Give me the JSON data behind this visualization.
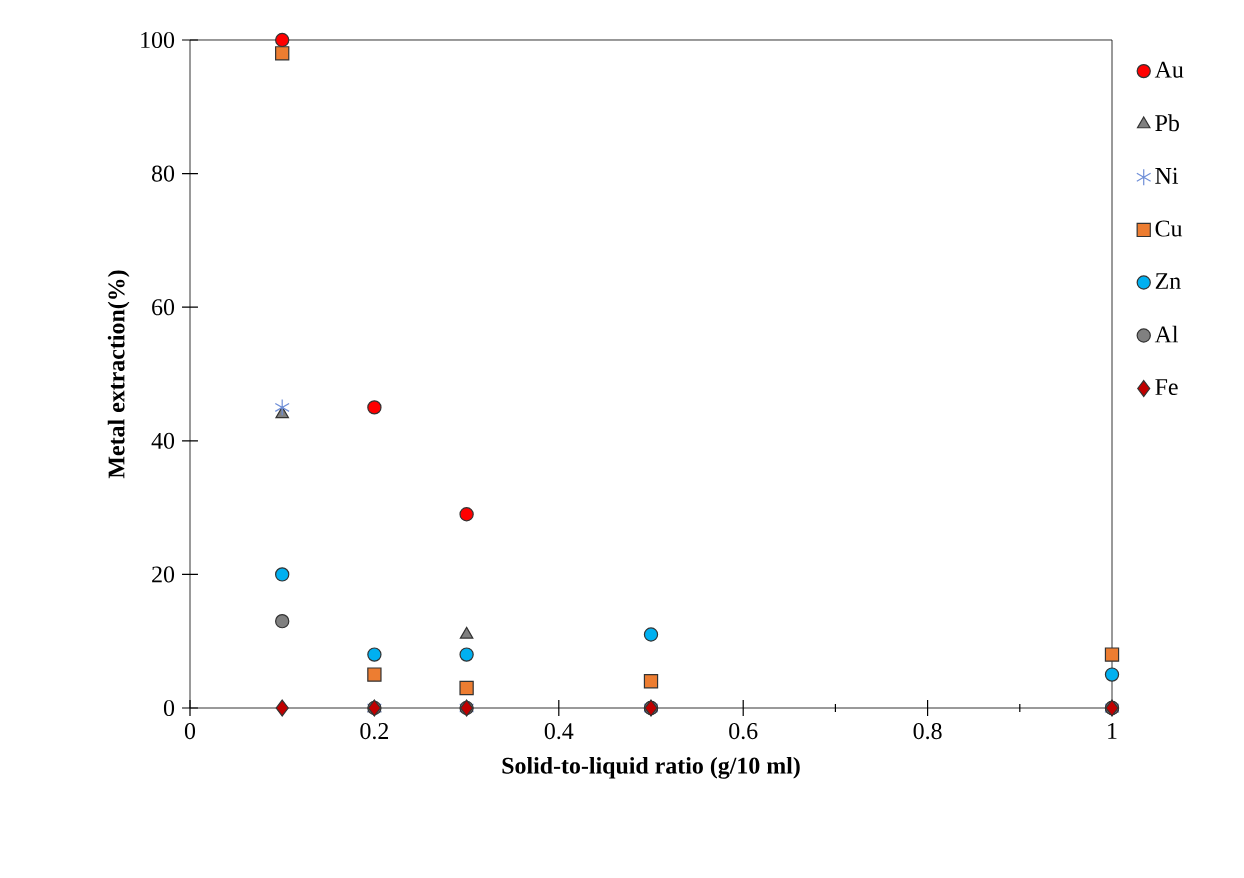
{
  "chart_data": {
    "type": "scatter",
    "xlabel": "Solid-to-liquid  ratio (g/10 ml)",
    "ylabel": "Metal extraction(%)",
    "x": [
      0.1,
      0.2,
      0.3,
      0.5,
      1
    ],
    "series": [
      {
        "name": "Au",
        "color": "#ff0000",
        "marker": "circle",
        "values": [
          100,
          45,
          29,
          0,
          0
        ]
      },
      {
        "name": "Pb",
        "color": "#808080",
        "marker": "triangle",
        "values": [
          44,
          0,
          11,
          null,
          0
        ]
      },
      {
        "name": "Ni",
        "color": "#6f8fd8",
        "marker": "cross",
        "values": [
          45,
          0,
          0,
          0,
          0
        ]
      },
      {
        "name": "Cu",
        "color": "#ed7d31",
        "marker": "square",
        "values": [
          98,
          5,
          3,
          4,
          8
        ]
      },
      {
        "name": "Zn",
        "color": "#00b0f0",
        "marker": "circle",
        "values": [
          20,
          8,
          8,
          11,
          5
        ]
      },
      {
        "name": "Al",
        "color": "#808080",
        "marker": "circle",
        "values": [
          13,
          0,
          0,
          0,
          0
        ]
      },
      {
        "name": "Fe",
        "color": "#c00000",
        "marker": "diamond",
        "values": [
          0,
          0,
          0,
          0,
          0
        ]
      }
    ],
    "xlim": [
      0,
      1
    ],
    "xticks": [
      0,
      0.2,
      0.4,
      0.6,
      0.8,
      1
    ],
    "ylim": [
      0,
      100
    ],
    "yticks": [
      0,
      20,
      40,
      60,
      80,
      100
    ],
    "grid": false,
    "legend": "right"
  }
}
